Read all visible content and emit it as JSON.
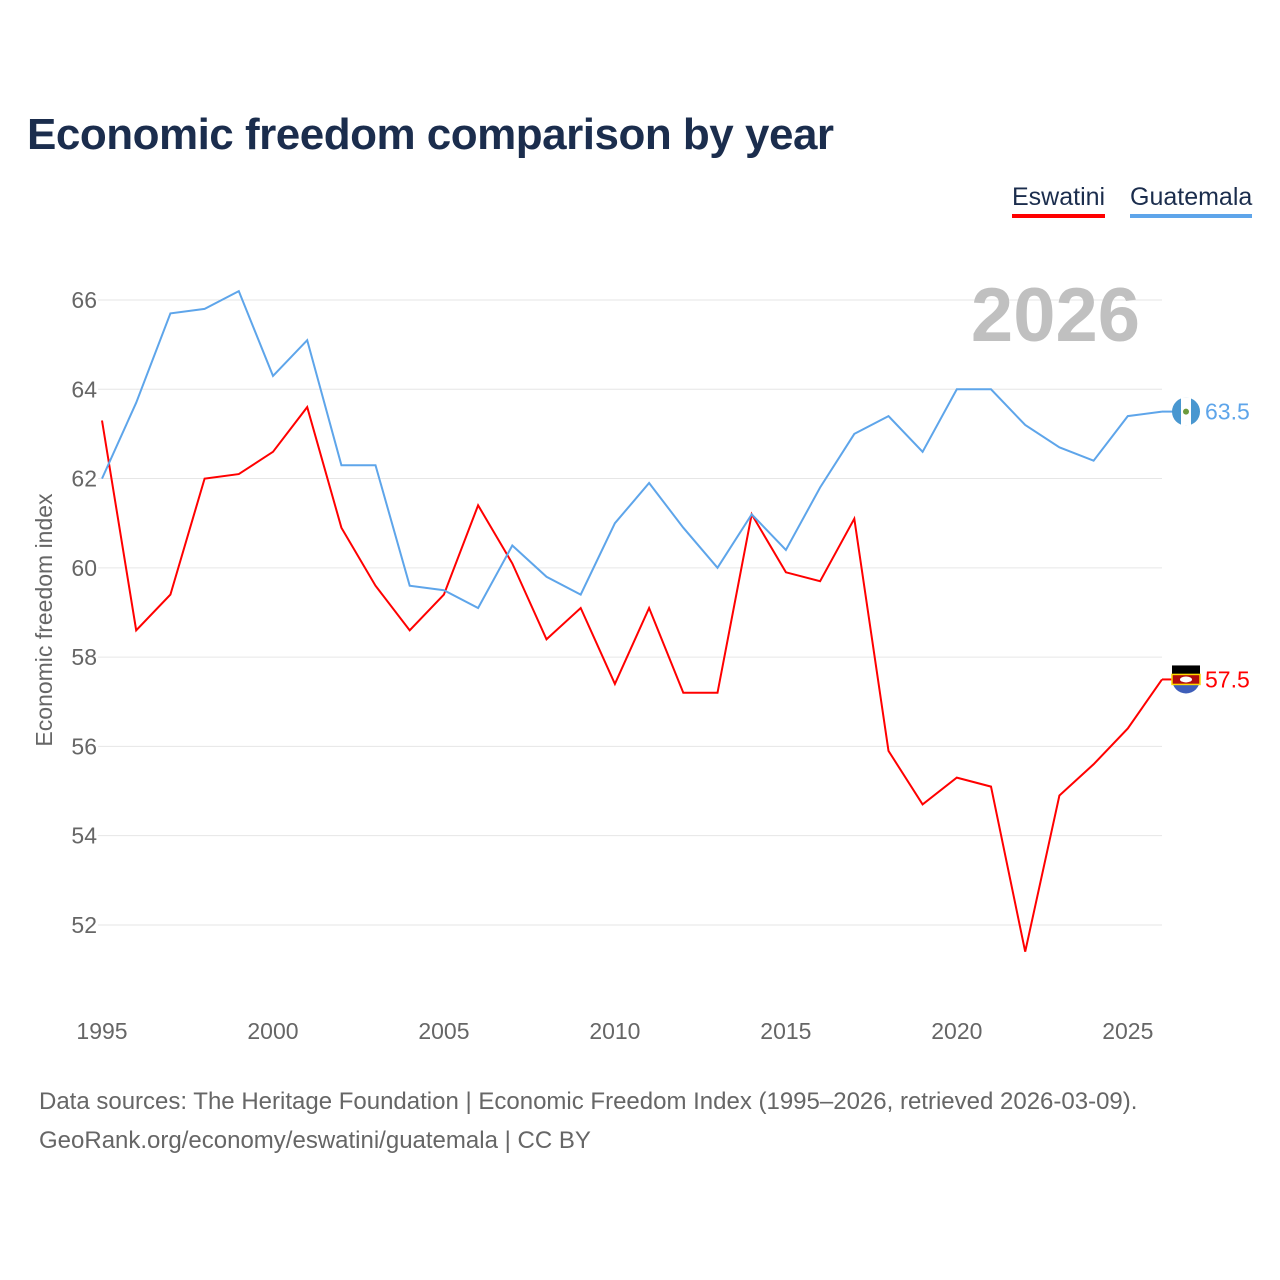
{
  "chart_data": {
    "type": "line",
    "title": "Economic freedom comparison by year",
    "xlabel": "",
    "ylabel": "Economic freedom index",
    "xlim": [
      1995,
      2026
    ],
    "ylim": [
      52,
      66
    ],
    "x_ticks": [
      "1995",
      "2000",
      "2005",
      "2010",
      "2015",
      "2020",
      "2025"
    ],
    "y_ticks": [
      "52",
      "54",
      "56",
      "58",
      "60",
      "62",
      "64",
      "66"
    ],
    "grid": true,
    "legend_position": "top-right",
    "year_label": "2026",
    "x": [
      1995,
      1996,
      1997,
      1998,
      1999,
      2000,
      2001,
      2002,
      2003,
      2004,
      2005,
      2006,
      2007,
      2008,
      2009,
      2010,
      2011,
      2012,
      2013,
      2014,
      2015,
      2016,
      2017,
      2018,
      2019,
      2020,
      2021,
      2022,
      2023,
      2024,
      2025,
      2026
    ],
    "series": [
      {
        "name": "Eswatini",
        "color": "#ff0000",
        "end_label": "57.5",
        "values": [
          63.3,
          58.6,
          59.4,
          62.0,
          62.1,
          62.6,
          63.6,
          60.9,
          59.6,
          58.6,
          59.4,
          61.4,
          60.1,
          58.4,
          59.1,
          57.4,
          59.1,
          57.2,
          57.2,
          61.2,
          59.9,
          59.7,
          61.1,
          55.9,
          54.7,
          55.3,
          55.1,
          51.4,
          54.9,
          55.6,
          56.4,
          57.5
        ]
      },
      {
        "name": "Guatemala",
        "color": "#5ea5ea",
        "end_label": "63.5",
        "values": [
          62.0,
          63.7,
          65.7,
          65.8,
          66.2,
          64.3,
          65.1,
          62.3,
          62.3,
          59.6,
          59.5,
          59.1,
          60.5,
          59.8,
          59.4,
          61.0,
          61.9,
          60.9,
          60.0,
          61.2,
          60.4,
          61.8,
          63.0,
          63.4,
          62.6,
          64.0,
          64.0,
          63.2,
          62.7,
          62.4,
          63.4,
          63.5
        ]
      }
    ]
  },
  "footer": {
    "line1": "Data sources: The Heritage Foundation | Economic Freedom Index (1995–2026, retrieved 2026-03-09).",
    "line2": "GeoRank.org/economy/eswatini/guatemala | CC BY"
  }
}
